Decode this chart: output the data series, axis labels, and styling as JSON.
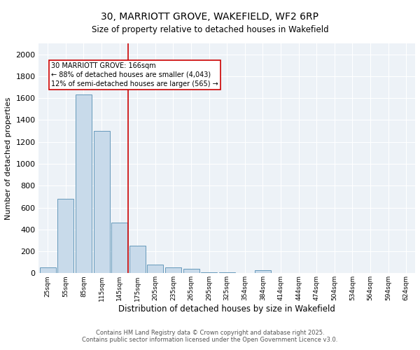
{
  "title_line1": "30, MARRIOTT GROVE, WAKEFIELD, WF2 6RP",
  "title_line2": "Size of property relative to detached houses in Wakefield",
  "xlabel": "Distribution of detached houses by size in Wakefield",
  "ylabel": "Number of detached properties",
  "bar_color": "#c8daea",
  "bar_edge_color": "#6699bb",
  "categories": [
    "25sqm",
    "55sqm",
    "85sqm",
    "115sqm",
    "145sqm",
    "175sqm",
    "205sqm",
    "235sqm",
    "265sqm",
    "295sqm",
    "325sqm",
    "354sqm",
    "384sqm",
    "414sqm",
    "444sqm",
    "474sqm",
    "504sqm",
    "534sqm",
    "564sqm",
    "594sqm",
    "624sqm"
  ],
  "values": [
    55,
    680,
    1630,
    1300,
    460,
    250,
    80,
    55,
    40,
    10,
    10,
    5,
    30,
    5,
    5,
    5,
    5,
    0,
    5,
    0,
    5
  ],
  "vline_color": "#cc0000",
  "vline_pos": 4.5,
  "annotation_text": "30 MARRIOTT GROVE: 166sqm\n← 88% of detached houses are smaller (4,043)\n12% of semi-detached houses are larger (565) →",
  "annotation_box_color": "#cc0000",
  "ylim": [
    0,
    2100
  ],
  "yticks": [
    0,
    200,
    400,
    600,
    800,
    1000,
    1200,
    1400,
    1600,
    1800,
    2000
  ],
  "background_color": "#edf2f7",
  "grid_color": "#ffffff",
  "footer_line1": "Contains HM Land Registry data © Crown copyright and database right 2025.",
  "footer_line2": "Contains public sector information licensed under the Open Government Licence v3.0."
}
